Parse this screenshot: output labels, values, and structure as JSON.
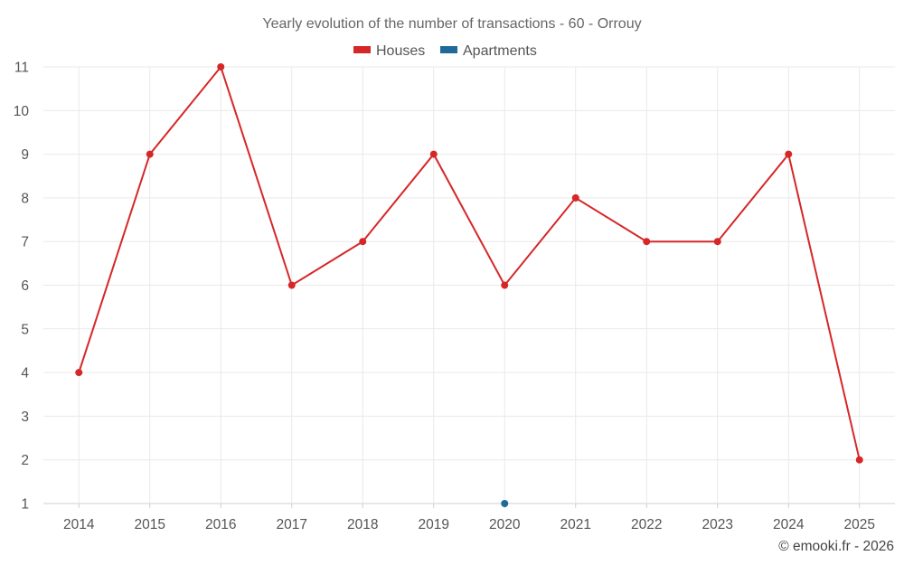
{
  "chart_data": {
    "type": "line",
    "title": "Yearly evolution of the number of transactions - 60 - Orrouy",
    "categories": [
      "2014",
      "2015",
      "2016",
      "2017",
      "2018",
      "2019",
      "2020",
      "2021",
      "2022",
      "2023",
      "2024",
      "2025"
    ],
    "series": [
      {
        "name": "Houses",
        "color": "#d62728",
        "values": [
          4,
          9,
          11,
          6,
          7,
          9,
          6,
          8,
          7,
          7,
          9,
          2
        ]
      },
      {
        "name": "Apartments",
        "color": "#1f6a9a",
        "values": [
          null,
          null,
          null,
          null,
          null,
          null,
          1,
          null,
          null,
          null,
          null,
          null
        ]
      }
    ],
    "yticks": [
      1,
      2,
      3,
      4,
      5,
      6,
      7,
      8,
      9,
      10,
      11
    ],
    "ylim": [
      1,
      11
    ],
    "xlabel": "",
    "ylabel": "",
    "grid": true,
    "legend": "top-center"
  },
  "credit": "© emooki.fr - 2026"
}
